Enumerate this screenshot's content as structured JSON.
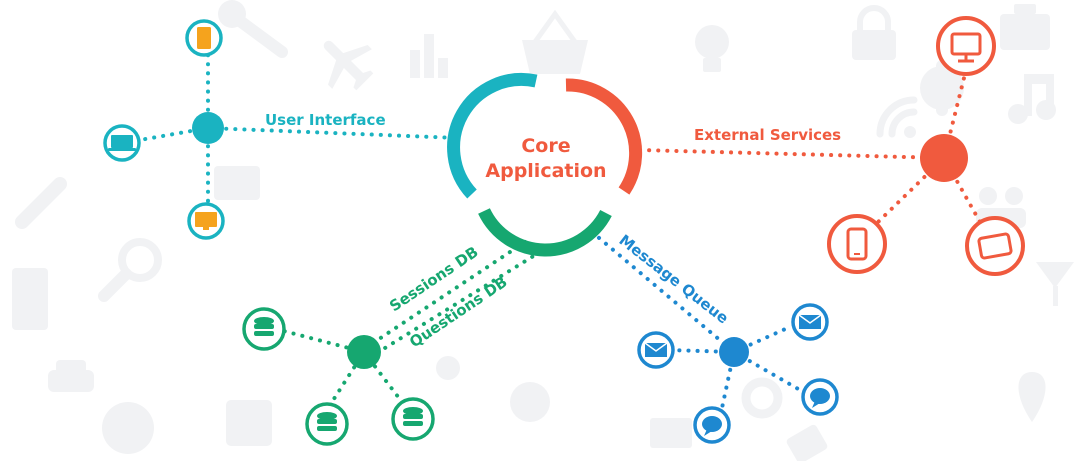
{
  "core": {
    "line1": "Core",
    "line2": "Application"
  },
  "connections": {
    "user_interface": "User Interface",
    "external_services": "External Services",
    "sessions_db": "Sessions DB",
    "questions_db": "Questions DB",
    "message_queue": "Message Queue"
  },
  "colors": {
    "teal": "#1ab3c1",
    "red": "#f05a3e",
    "green": "#16a770",
    "blue": "#1e88d0",
    "orange": "#f5a31d",
    "background_icons": "#f1f2f4"
  },
  "nodes": {
    "user_interface": {
      "color": "teal",
      "devices": [
        "phone-icon",
        "laptop-icon",
        "monitor-icon"
      ]
    },
    "external_services": {
      "color": "red",
      "devices": [
        "desktop-icon",
        "smartphone-icon",
        "tablet-icon"
      ]
    },
    "databases": {
      "color": "green",
      "devices": [
        "database-icon",
        "database-icon",
        "database-icon"
      ]
    },
    "message_queue": {
      "color": "blue",
      "devices": [
        "envelope-icon",
        "envelope-icon",
        "chat-bubble-icon",
        "chat-bubble-icon"
      ]
    }
  },
  "background_icons": [
    "wrench-icon",
    "airplane-icon",
    "bar-chart-icon",
    "basket-icon",
    "lightbulb-icon",
    "padlock-icon",
    "briefcase-icon",
    "dollar-icon",
    "music-note-icon",
    "wifi-icon",
    "pencil-icon",
    "magnifier-icon",
    "people-icon",
    "car-icon",
    "globe-icon",
    "calendar-icon",
    "speech-bubble-icon",
    "gear-icon",
    "map-pin-icon",
    "cocktail-icon"
  ]
}
